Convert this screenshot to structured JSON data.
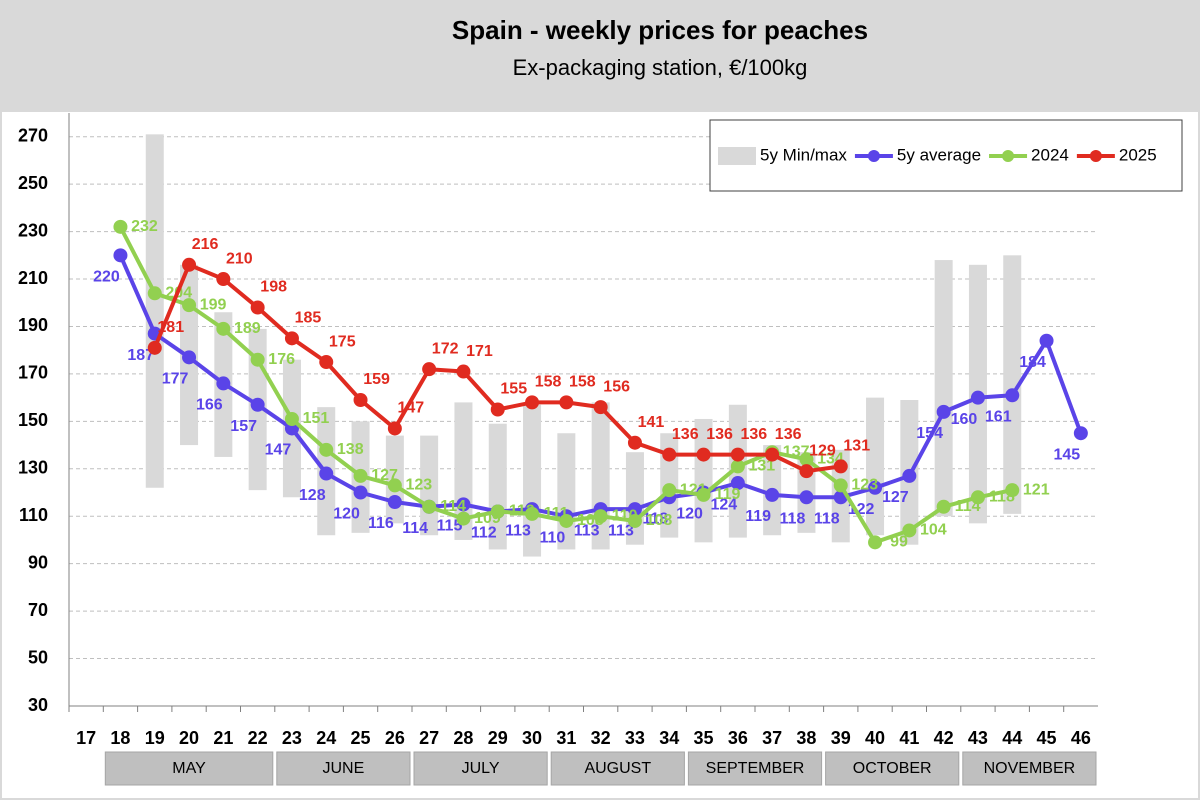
{
  "chart_data": {
    "type": "line",
    "title": "Spain - weekly prices for peaches",
    "subtitle": "Ex-packaging station, €/100kg",
    "categories": [
      17,
      18,
      19,
      20,
      21,
      22,
      23,
      24,
      25,
      26,
      27,
      28,
      29,
      30,
      31,
      32,
      33,
      34,
      35,
      36,
      37,
      38,
      39,
      40,
      41,
      42,
      43,
      44,
      45,
      46
    ],
    "ylim": [
      30,
      280
    ],
    "yticks": [
      30,
      50,
      70,
      90,
      110,
      130,
      150,
      170,
      190,
      210,
      230,
      250,
      270
    ],
    "grid": true,
    "legend": "upper right",
    "months": [
      {
        "label": "MAY",
        "from": 18,
        "to": 22
      },
      {
        "label": "JUNE",
        "from": 23,
        "to": 26
      },
      {
        "label": "JULY",
        "from": 27,
        "to": 30
      },
      {
        "label": "AUGUST",
        "from": 31,
        "to": 34
      },
      {
        "label": "SEPTEMBER",
        "from": 35,
        "to": 38
      },
      {
        "label": "OCTOBER",
        "from": 39,
        "to": 42
      },
      {
        "label": "NOVEMBER",
        "from": 43,
        "to": 46
      }
    ],
    "series": [
      {
        "name": "5y Min/max",
        "kind": "range",
        "color": "#d9d9d9",
        "low": [
          null,
          null,
          122,
          140,
          135,
          121,
          118,
          102,
          103,
          107,
          102,
          100,
          96,
          93,
          96,
          96,
          98,
          101,
          99,
          101,
          102,
          103,
          99,
          102,
          98,
          110,
          107,
          111,
          null,
          null
        ],
        "high": [
          null,
          null,
          271,
          216,
          196,
          189,
          176,
          156,
          150,
          144,
          144,
          158,
          149,
          157,
          145,
          158,
          137,
          145,
          151,
          157,
          140,
          137,
          138,
          160,
          159,
          218,
          216,
          220,
          null,
          null
        ]
      },
      {
        "name": "5y average",
        "kind": "line",
        "color": "#5a44e8",
        "label_pos": "below",
        "values": [
          null,
          220,
          187,
          177,
          166,
          157,
          147,
          128,
          120,
          116,
          114,
          115,
          112,
          113,
          110,
          113,
          113,
          118,
          120,
          124,
          119,
          118,
          118,
          122,
          127,
          154,
          160,
          161,
          184,
          145
        ]
      },
      {
        "name": "2024",
        "kind": "line",
        "color": "#92d050",
        "label_pos": "right",
        "values": [
          null,
          232,
          204,
          199,
          189,
          176,
          151,
          138,
          127,
          123,
          114,
          109,
          112,
          111,
          108,
          110,
          108,
          121,
          119,
          131,
          137,
          134,
          123,
          99,
          104,
          114,
          118,
          121,
          null,
          null
        ]
      },
      {
        "name": "2025",
        "kind": "line",
        "color": "#e02b20",
        "label_pos": "above",
        "values": [
          null,
          null,
          181,
          216,
          210,
          198,
          185,
          175,
          159,
          147,
          172,
          171,
          155,
          158,
          158,
          156,
          141,
          136,
          136,
          136,
          136,
          129,
          131,
          null,
          null,
          null,
          null,
          null,
          null,
          null
        ]
      }
    ]
  }
}
